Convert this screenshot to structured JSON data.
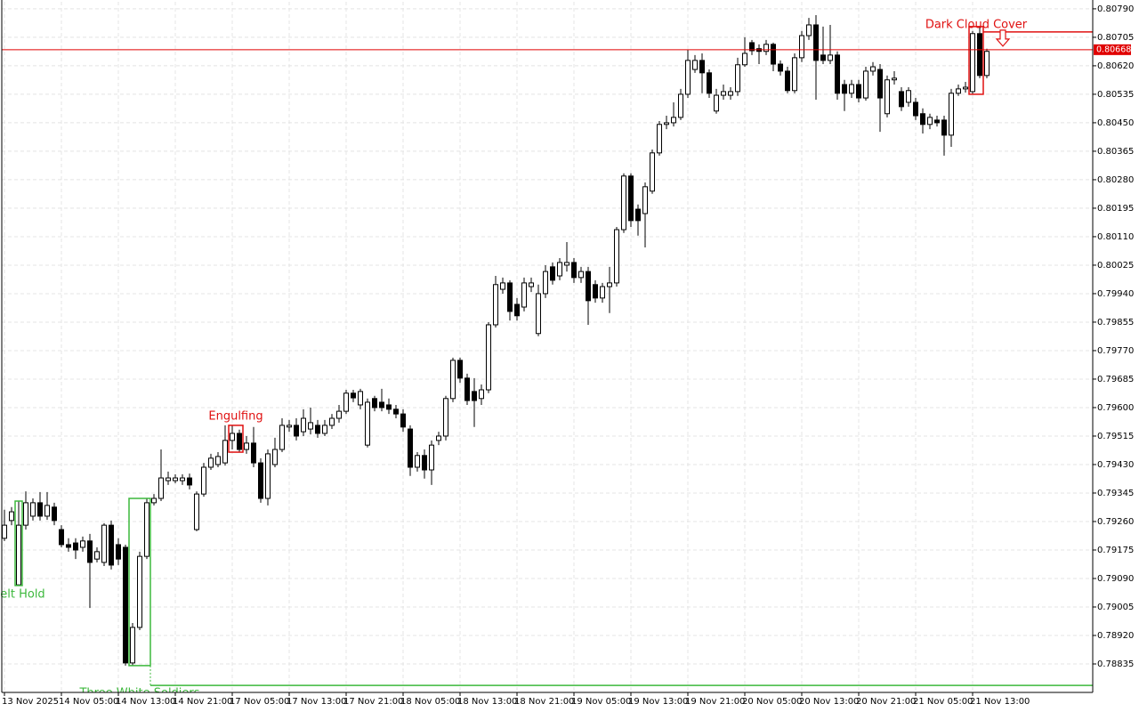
{
  "chart_data": {
    "type": "candlestick",
    "categories": [
      "13 Nov 2025",
      null,
      null,
      null,
      null,
      null,
      null,
      null,
      "14 Nov 05:00",
      null,
      null,
      null,
      null,
      null,
      null,
      null,
      "14 Nov 13:00",
      null,
      null,
      null,
      null,
      null,
      null,
      null,
      "14 Nov 21:00",
      null,
      null,
      null,
      null,
      null,
      null,
      null,
      "17 Nov 05:00",
      null,
      null,
      null,
      null,
      null,
      null,
      null,
      "17 Nov 13:00",
      null,
      null,
      null,
      null,
      null,
      null,
      null,
      "17 Nov 21:00",
      null,
      null,
      null,
      null,
      null,
      null,
      null,
      "18 Nov 05:00",
      null,
      null,
      null,
      null,
      null,
      null,
      null,
      "18 Nov 13:00",
      null,
      null,
      null,
      null,
      null,
      null,
      null,
      "18 Nov 21:00",
      null,
      null,
      null,
      null,
      null,
      null,
      null,
      "19 Nov 05:00",
      null,
      null,
      null,
      null,
      null,
      null,
      null,
      "19 Nov 13:00",
      null,
      null,
      null,
      null,
      null,
      null,
      null,
      "19 Nov 21:00",
      null,
      null,
      null,
      null,
      null,
      null,
      null,
      "20 Nov 05:00",
      null,
      null,
      null,
      null,
      null,
      null,
      null,
      "20 Nov 13:00",
      null,
      null,
      null,
      null,
      null,
      null,
      null,
      "20 Nov 21:00",
      null,
      null,
      null,
      null,
      null,
      null,
      null,
      "21 Nov 05:00",
      null,
      null,
      null,
      null,
      null,
      null,
      null,
      "21 Nov 13:00",
      null,
      null
    ],
    "open": [
      0.7921,
      0.79263,
      0.79071,
      0.79249,
      0.79276,
      0.79316,
      0.79276,
      0.79303,
      0.79236,
      0.79191,
      0.79196,
      0.79183,
      0.79202,
      0.79148,
      0.79138,
      0.79249,
      0.79191,
      0.79183,
      0.78838,
      0.78944,
      0.79156,
      0.79316,
      0.79329,
      0.79382,
      0.79382,
      0.79382,
      0.7939,
      0.79236,
      0.79342,
      0.79422,
      0.7943,
      0.79435,
      0.79502,
      0.79523,
      0.79475,
      0.79494,
      0.79435,
      0.79329,
      0.7943,
      0.79475,
      0.79542,
      0.79547,
      0.79528,
      0.79536,
      0.79547,
      0.79523,
      0.79547,
      0.79568,
      0.79589,
      0.79643,
      0.79608,
      0.79488,
      0.79627,
      0.79616,
      0.79608,
      0.79595,
      0.79581,
      0.79536,
      0.79422,
      0.79457,
      0.79414,
      0.79502,
      0.79515,
      0.79627,
      0.79741,
      0.79688,
      0.79648,
      0.79627,
      0.79653,
      0.79847,
      0.79953,
      0.79972,
      0.79908,
      0.799,
      0.79961,
      0.79821,
      0.7994,
      0.8002,
      0.79993,
      0.80025,
      0.80033,
      0.79988,
      0.80006,
      0.79967,
      0.79927,
      0.79961,
      0.79972,
      0.80131,
      0.80291,
      0.80192,
      0.80179,
      0.80246,
      0.8036,
      0.80445,
      0.8045,
      0.80466,
      0.80535,
      0.80609,
      0.80636,
      0.80599,
      0.80485,
      0.80532,
      0.80532,
      0.80543,
      0.80623,
      0.80689,
      0.80671,
      0.80663,
      0.80684,
      0.80625,
      0.80604,
      0.80546,
      0.80644,
      0.8071,
      0.80742,
      0.80652,
      0.80636,
      0.80652,
      0.80564,
      0.80538,
      0.80564,
      0.80524,
      0.80604,
      0.80609,
      0.80477,
      0.80578,
      0.80543,
      0.80511,
      0.80511,
      0.80477,
      0.80445,
      0.80458,
      0.80458,
      0.80413,
      0.80538,
      0.80551,
      0.80543,
      0.80716,
      0.80591
    ],
    "high": [
      0.79295,
      0.79303,
      0.79321,
      0.7935,
      0.79329,
      0.79348,
      0.79348,
      0.79316,
      0.79249,
      0.7921,
      0.7921,
      0.79215,
      0.79223,
      0.79183,
      0.79255,
      0.79263,
      0.7921,
      0.79191,
      0.78957,
      0.7917,
      0.79329,
      0.79342,
      0.79475,
      0.79409,
      0.79401,
      0.79401,
      0.79403,
      0.7935,
      0.79435,
      0.79462,
      0.79467,
      0.79547,
      0.79547,
      0.79534,
      0.79515,
      0.79542,
      0.79449,
      0.79475,
      0.7951,
      0.79568,
      0.79563,
      0.79568,
      0.79595,
      0.796,
      0.79563,
      0.79563,
      0.79581,
      0.79608,
      0.79653,
      0.79653,
      0.79656,
      0.79627,
      0.79635,
      0.79656,
      0.79627,
      0.79608,
      0.79595,
      0.79547,
      0.79467,
      0.79475,
      0.79502,
      0.79528,
      0.79635,
      0.79749,
      0.79749,
      0.79701,
      0.79688,
      0.79669,
      0.79855,
      0.79993,
      0.79988,
      0.7998,
      0.79927,
      0.79988,
      0.79988,
      0.79967,
      0.80025,
      0.80033,
      0.80046,
      0.80094,
      0.80046,
      0.8002,
      0.8002,
      0.7998,
      0.79972,
      0.8002,
      0.80139,
      0.80299,
      0.80299,
      0.80206,
      0.80272,
      0.8037,
      0.80455,
      0.80471,
      0.80511,
      0.80551,
      0.80668,
      0.80652,
      0.80657,
      0.80609,
      0.80551,
      0.80564,
      0.80556,
      0.80644,
      0.80705,
      0.80697,
      0.80684,
      0.80697,
      0.80689,
      0.80636,
      0.80617,
      0.80657,
      0.80724,
      0.80763,
      0.80771,
      0.80737,
      0.80742,
      0.80663,
      0.80578,
      0.80578,
      0.80578,
      0.80617,
      0.80631,
      0.80625,
      0.80591,
      0.80604,
      0.80556,
      0.80556,
      0.80524,
      0.80493,
      0.80477,
      0.80471,
      0.80471,
      0.80551,
      0.80564,
      0.80572,
      0.80724,
      0.80737,
      0.80671
    ],
    "low": [
      0.79202,
      0.79249,
      0.79069,
      0.79236,
      0.79263,
      0.79263,
      0.79265,
      0.79249,
      0.79183,
      0.7917,
      0.79148,
      0.7917,
      0.79002,
      0.79138,
      0.79127,
      0.79117,
      0.7913,
      0.7883,
      0.7883,
      0.78936,
      0.79148,
      0.79308,
      0.79321,
      0.79369,
      0.79374,
      0.79369,
      0.79356,
      0.79231,
      0.79334,
      0.79414,
      0.79422,
      0.79427,
      0.79475,
      0.79467,
      0.79462,
      0.79422,
      0.79316,
      0.79308,
      0.79422,
      0.79467,
      0.79528,
      0.79502,
      0.79515,
      0.7952,
      0.7951,
      0.79515,
      0.79536,
      0.79555,
      0.79581,
      0.79616,
      0.79595,
      0.79481,
      0.79589,
      0.79589,
      0.79581,
      0.79568,
      0.79528,
      0.79396,
      0.79409,
      0.79388,
      0.79369,
      0.79488,
      0.79502,
      0.79616,
      0.79674,
      0.79608,
      0.79542,
      0.79608,
      0.79643,
      0.79839,
      0.7994,
      0.7986,
      0.7986,
      0.79887,
      0.79945,
      0.79813,
      0.79927,
      0.79967,
      0.7998,
      0.80006,
      0.79972,
      0.79972,
      0.79847,
      0.79913,
      0.79913,
      0.79882,
      0.79961,
      0.80121,
      0.80139,
      0.80113,
      0.80078,
      0.80238,
      0.80352,
      0.80431,
      0.80439,
      0.80458,
      0.80524,
      0.80599,
      0.80538,
      0.80524,
      0.80477,
      0.80519,
      0.80519,
      0.8053,
      0.80617,
      0.80652,
      0.80625,
      0.80652,
      0.80604,
      0.80591,
      0.80538,
      0.80538,
      0.80631,
      0.80697,
      0.80519,
      0.80625,
      0.80625,
      0.80519,
      0.80485,
      0.80524,
      0.80511,
      0.80516,
      0.80591,
      0.80423,
      0.80466,
      0.80564,
      0.80485,
      0.80498,
      0.80458,
      0.80418,
      0.80431,
      0.80439,
      0.80352,
      0.80378,
      0.8053,
      0.8054,
      0.80535,
      0.80583,
      0.80583
    ],
    "close": [
      0.79249,
      0.79289,
      0.79249,
      0.79316,
      0.79316,
      0.79276,
      0.79308,
      0.79263,
      0.79191,
      0.79183,
      0.79175,
      0.79202,
      0.79138,
      0.7917,
      0.79249,
      0.7913,
      0.79148,
      0.78838,
      0.78944,
      0.79156,
      0.79316,
      0.79329,
      0.7939,
      0.7939,
      0.7939,
      0.7939,
      0.79369,
      0.79342,
      0.79422,
      0.79449,
      0.79454,
      0.79502,
      0.79523,
      0.79475,
      0.79494,
      0.79435,
      0.79329,
      0.79462,
      0.79475,
      0.79547,
      0.79547,
      0.79515,
      0.79568,
      0.79555,
      0.79523,
      0.79547,
      0.79568,
      0.79589,
      0.79643,
      0.79629,
      0.79648,
      0.79616,
      0.796,
      0.796,
      0.79595,
      0.79581,
      0.79542,
      0.79422,
      0.79457,
      0.79414,
      0.79488,
      0.79515,
      0.79627,
      0.79741,
      0.79688,
      0.79621,
      0.79621,
      0.79653,
      0.79847,
      0.79967,
      0.79972,
      0.79887,
      0.79874,
      0.79972,
      0.79972,
      0.7994,
      0.80006,
      0.7998,
      0.80033,
      0.80033,
      0.79988,
      0.80006,
      0.79919,
      0.79927,
      0.79961,
      0.79972,
      0.80131,
      0.80291,
      0.80158,
      0.80158,
      0.80259,
      0.8036,
      0.80445,
      0.8045,
      0.80466,
      0.80535,
      0.80636,
      0.80636,
      0.80599,
      0.80538,
      0.80532,
      0.80543,
      0.80543,
      0.80623,
      0.80657,
      0.80665,
      0.80663,
      0.80684,
      0.80625,
      0.80604,
      0.80546,
      0.80644,
      0.8071,
      0.80742,
      0.80636,
      0.80636,
      0.80652,
      0.80538,
      0.80538,
      0.80564,
      0.80524,
      0.80604,
      0.80617,
      0.80524,
      0.80578,
      0.80583,
      0.80498,
      0.80546,
      0.80471,
      0.80445,
      0.80466,
      0.8045,
      0.80413,
      0.80538,
      0.80551,
      0.80556,
      0.80716,
      0.80591,
      0.80663
    ],
    "bull_color": "#ffffff",
    "bear_color": "#000000",
    "ylim": [
      0.7875,
      0.80811
    ],
    "yticks": [
      {
        "value": 0.8079,
        "label": "0.80790"
      },
      0.80705,
      {
        "value": 0.8062,
        "label": "0.80620"
      },
      0.80535,
      {
        "value": 0.8045,
        "label": "0.80450"
      },
      0.80365,
      {
        "value": 0.8028,
        "label": "0.80280"
      },
      0.80195,
      {
        "value": 0.8011,
        "label": "0.80110"
      },
      0.80025,
      {
        "value": 0.7994,
        "label": "0.79940"
      },
      0.79855,
      {
        "value": 0.7977,
        "label": "0.79770"
      },
      0.79685,
      {
        "value": 0.796,
        "label": "0.79600"
      },
      0.79515,
      {
        "value": 0.7943,
        "label": "0.79430"
      },
      0.79345,
      {
        "value": 0.7926,
        "label": "0.79260"
      },
      0.79175,
      {
        "value": 0.7909,
        "label": "0.79090"
      },
      0.79005,
      {
        "value": 0.7892,
        "label": "0.78920"
      },
      0.78835
    ],
    "grid": true,
    "current_price": 0.80668,
    "current_price_color": "#e00000",
    "patterns": [
      {
        "name": "Belt Hold",
        "color": "#3cb83c",
        "direction": "up",
        "candles": [
          2
        ]
      },
      {
        "name": "Engulfing",
        "color": "#e01010",
        "direction": "down",
        "candles": [
          32,
          33
        ]
      },
      {
        "name": "Three White Soldiers",
        "color": "#3cb83c",
        "direction": "up",
        "candles": [
          18,
          19,
          20
        ],
        "level": 0.78771
      },
      {
        "name": "Dark Cloud Cover",
        "color": "#e01010",
        "direction": "down",
        "candles": [
          136,
          137
        ],
        "level": 0.80721,
        "arrow": true
      }
    ]
  }
}
